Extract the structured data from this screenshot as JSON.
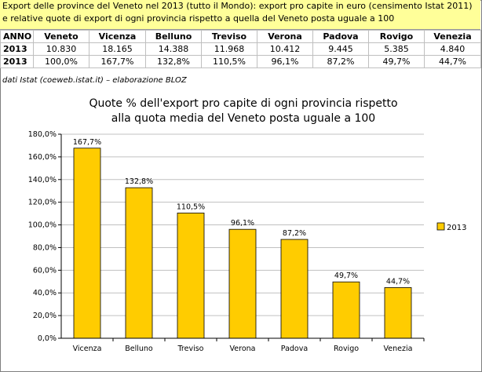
{
  "header": {
    "line1": "Export delle province del Veneto nel 2013 (tutto il Mondo): export pro capite in euro (censimento Istat 2011)",
    "line2": "e relative quote di export di ogni provincia rispetto a quella del Veneto posta uguale a 100"
  },
  "table": {
    "columns": [
      "ANNO",
      "Veneto",
      "Vicenza",
      "Belluno",
      "Treviso",
      "Verona",
      "Padova",
      "Rovigo",
      "Venezia"
    ],
    "rows": [
      [
        "2013",
        "10.830",
        "18.165",
        "14.388",
        "11.968",
        "10.412",
        "9.445",
        "5.385",
        "4.840"
      ],
      [
        "2013",
        "100,0%",
        "167,7%",
        "132,8%",
        "110,5%",
        "96,1%",
        "87,2%",
        "49,7%",
        "44,7%"
      ]
    ]
  },
  "source": "dati Istat (coeweb.istat.it) – elaborazione BLOZ",
  "chart_data": {
    "type": "bar",
    "title_line1": "Quote % dell'export pro capite di ogni provincia rispetto",
    "title_line2": "alla quota media del Veneto posta uguale a 100",
    "categories": [
      "Vicenza",
      "Belluno",
      "Treviso",
      "Verona",
      "Padova",
      "Rovigo",
      "Venezia"
    ],
    "series": [
      {
        "name": "2013",
        "values": [
          167.7,
          132.8,
          110.5,
          96.1,
          87.2,
          49.7,
          44.7
        ],
        "labels": [
          "167,7%",
          "132,8%",
          "110,5%",
          "96,1%",
          "87,2%",
          "49,7%",
          "44,7%"
        ]
      }
    ],
    "ylim": [
      0,
      180
    ],
    "yticks": [
      0,
      20,
      40,
      60,
      80,
      100,
      120,
      140,
      160,
      180
    ],
    "ytick_labels": [
      "0,0%",
      "20,0%",
      "40,0%",
      "60,0%",
      "80,0%",
      "100,0%",
      "120,0%",
      "140,0%",
      "160,0%",
      "180,0%"
    ],
    "grid": true,
    "legend_position": "right",
    "bar_color": "#ffcc00",
    "bar_edge_color": "#000000"
  }
}
